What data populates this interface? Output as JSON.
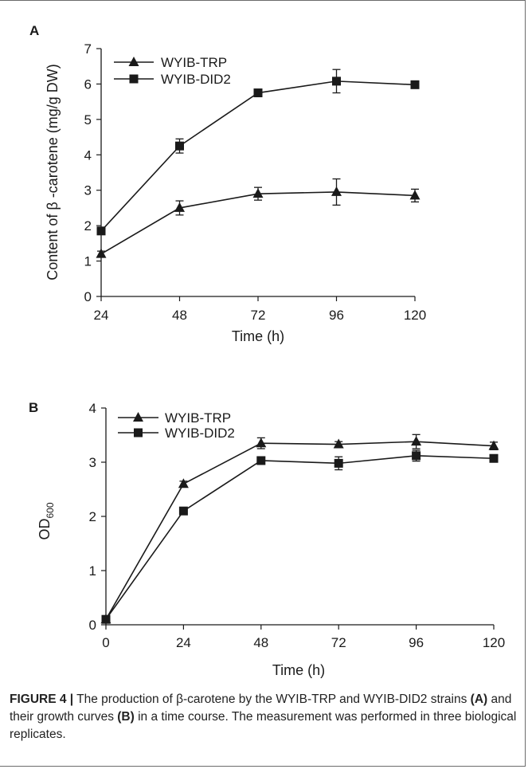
{
  "chart_data": [
    {
      "panel": "A",
      "type": "line",
      "xlabel": "Time (h)",
      "ylabel": "Content of β -carotene (mg/g DW)",
      "x": [
        24,
        48,
        72,
        96,
        120
      ],
      "xlim": [
        24,
        120
      ],
      "ylim": [
        0,
        7
      ],
      "xticks": [
        "24",
        "48",
        "72",
        "96",
        "120"
      ],
      "yticks": [
        "0",
        "1",
        "2",
        "3",
        "4",
        "5",
        "6",
        "7"
      ],
      "legend_position": "top-left",
      "grid": false,
      "series": [
        {
          "name": "WYIB-TRP",
          "marker": "triangle",
          "values": [
            1.2,
            2.5,
            2.9,
            2.95,
            2.85
          ],
          "errors": [
            0.08,
            0.2,
            0.18,
            0.37,
            0.18
          ]
        },
        {
          "name": "WYIB-DID2",
          "marker": "square",
          "values": [
            1.85,
            4.25,
            5.75,
            6.08,
            5.98
          ],
          "errors": [
            0.05,
            0.2,
            0.05,
            0.33,
            0.1
          ]
        }
      ]
    },
    {
      "panel": "B",
      "type": "line",
      "xlabel": "Time (h)",
      "ylabel": "OD600",
      "ylabel_main": "OD",
      "ylabel_sub": "600",
      "x": [
        0,
        24,
        48,
        72,
        96,
        120
      ],
      "xlim": [
        0,
        120
      ],
      "ylim": [
        0,
        4
      ],
      "xticks": [
        "0",
        "24",
        "48",
        "72",
        "96",
        "120"
      ],
      "yticks": [
        "0",
        "1",
        "2",
        "3",
        "4"
      ],
      "legend_position": "top-left",
      "grid": false,
      "series": [
        {
          "name": "WYIB-TRP",
          "marker": "triangle",
          "values": [
            0.1,
            2.6,
            3.35,
            3.33,
            3.38,
            3.3
          ],
          "errors": [
            0.02,
            0.05,
            0.1,
            0.05,
            0.13,
            0.07
          ]
        },
        {
          "name": "WYIB-DID2",
          "marker": "square",
          "values": [
            0.1,
            2.1,
            3.03,
            2.98,
            3.12,
            3.07
          ],
          "errors": [
            0.02,
            0.03,
            0.03,
            0.12,
            0.1,
            0.05
          ]
        }
      ]
    }
  ],
  "caption": {
    "label": "FIGURE 4 |",
    "text_1": " The production of β-carotene by the WYIB-TRP and WYIB-DID2 strains ",
    "ref_a": "(A)",
    "text_2": " and their growth curves ",
    "ref_b": "(B)",
    "text_3": " in a time course. The measurement was performed in three biological replicates."
  },
  "colors": {
    "line": "#1a1a1a",
    "frame": "#6b6b6b"
  }
}
